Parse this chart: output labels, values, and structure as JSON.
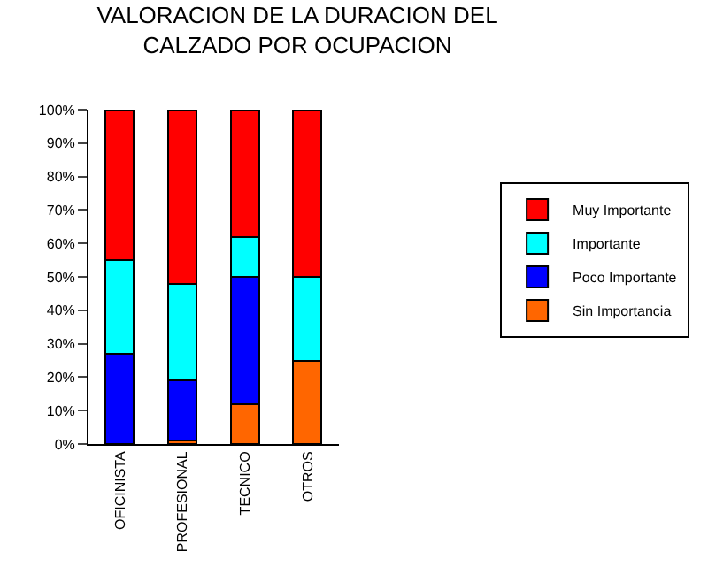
{
  "chart_data": {
    "type": "bar",
    "title": "VALORACION DE LA DURACION DEL\nCALZADO POR OCUPACION",
    "stacked": true,
    "categories": [
      "OFICINISTA",
      "PROFESIONAL",
      "TECNICO",
      "OTROS"
    ],
    "series": [
      {
        "name": "Sin Importancia",
        "color": "#ff6600",
        "values": [
          0,
          1,
          12,
          25
        ]
      },
      {
        "name": "Poco Importante",
        "color": "#0000ff",
        "values": [
          27,
          18,
          38,
          0
        ]
      },
      {
        "name": "Importante",
        "color": "#00ffff",
        "values": [
          28,
          29,
          12,
          25
        ]
      },
      {
        "name": "Muy Importante",
        "color": "#ff0000",
        "values": [
          45,
          52,
          38,
          50
        ]
      }
    ],
    "ylim": [
      0,
      100
    ],
    "yticks": [
      {
        "value": 0,
        "label": "0%"
      },
      {
        "value": 10,
        "label": "10%"
      },
      {
        "value": 20,
        "label": "20%"
      },
      {
        "value": 30,
        "label": "30%"
      },
      {
        "value": 40,
        "label": "40%"
      },
      {
        "value": 50,
        "label": "50%"
      },
      {
        "value": 60,
        "label": "60%"
      },
      {
        "value": 70,
        "label": "70%"
      },
      {
        "value": 80,
        "label": "80%"
      },
      {
        "value": 90,
        "label": "90%"
      },
      {
        "value": 100,
        "label": "100%"
      }
    ],
    "grid": false,
    "legend": "right"
  }
}
